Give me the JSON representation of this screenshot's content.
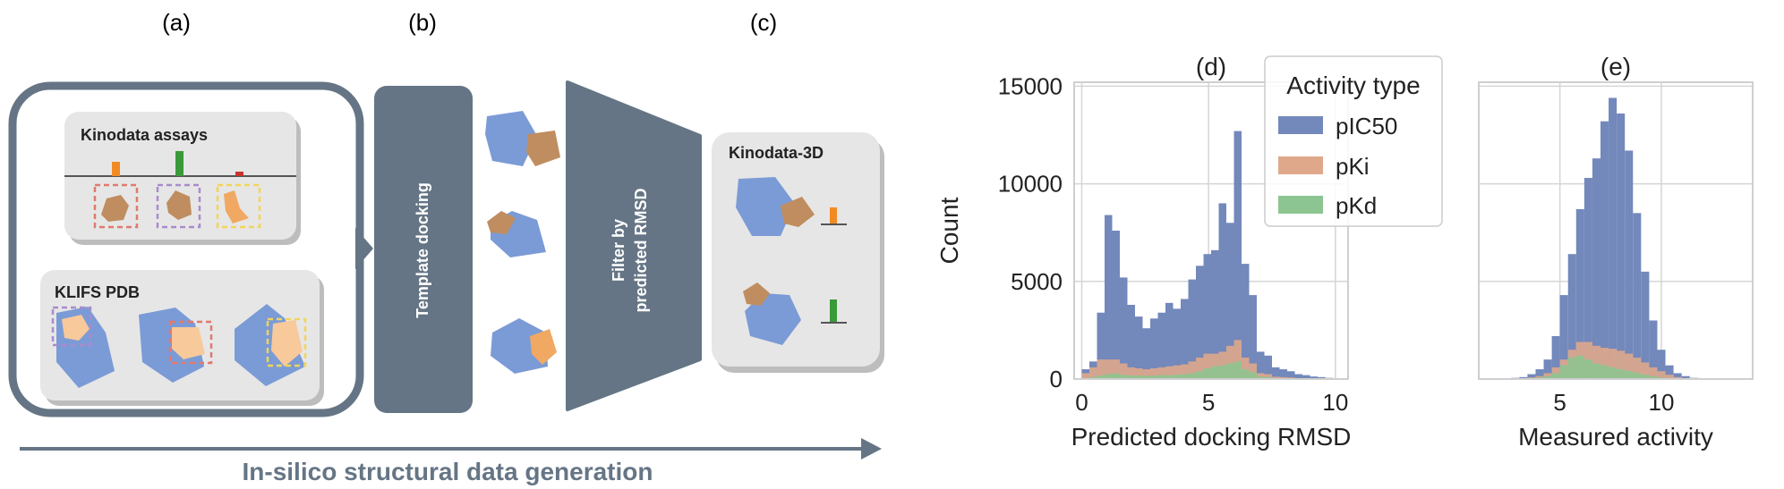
{
  "panel_labels": {
    "a": "(a)",
    "b": "(b)",
    "c": "(c)",
    "d": "(d)",
    "e": "(e)"
  },
  "workflow": {
    "assays_title": "Kinodata assays",
    "pdb_title": "KLIFS PDB",
    "docking_label": "Template docking",
    "filter_label_line1": "Filter by",
    "filter_label_line2": "predicted RMSD",
    "output_title": "Kinodata-3D",
    "arrow_caption": "In-silico structural data generation"
  },
  "colors": {
    "dark_slate": "#657585",
    "light_panel": "#e6e6e6",
    "protein_blue": "#7b9bd6",
    "ligand_brown": "#bf8d5f",
    "ligand_orange": "#f0a862",
    "ligand_peach": "#f8c99a",
    "bar_orange": "#f28a24",
    "bar_green": "#3a9a3a",
    "bar_red": "#c8352b",
    "box_red": "#e07a6e",
    "box_purple": "#a98bcc",
    "box_yellow": "#f2d45a",
    "series_pic50": "#7388bb",
    "series_pki": "#e0a88a",
    "series_pkd": "#8cc591"
  },
  "chart_data": [
    {
      "type": "bar",
      "title": "(d)",
      "xlabel": "Predicted docking RMSD",
      "ylabel": "Count",
      "xlim": [
        -0.3,
        10.5
      ],
      "ylim": [
        0,
        15200
      ],
      "xticks": [
        0,
        5,
        10
      ],
      "yticks": [
        0,
        5000,
        10000,
        15000
      ],
      "grid": true,
      "legend": {
        "title": "Activity type",
        "placement": "top-right",
        "entries": [
          "pIC50",
          "pKi",
          "pKd"
        ]
      },
      "bin_width": 0.3,
      "bin_starts": [
        0,
        0.3,
        0.6,
        0.9,
        1.2,
        1.5,
        1.8,
        2.1,
        2.4,
        2.7,
        3.0,
        3.3,
        3.6,
        3.9,
        4.2,
        4.5,
        4.8,
        5.1,
        5.4,
        5.7,
        6.0,
        6.3,
        6.6,
        6.9,
        7.2,
        7.5,
        7.8,
        8.1,
        8.4,
        8.7,
        9.0,
        9.3,
        9.6,
        9.9
      ],
      "series": [
        {
          "name": "pIC50",
          "values": [
            500,
            900,
            3400,
            8400,
            7600,
            5200,
            3800,
            3200,
            2600,
            3100,
            3400,
            3900,
            3600,
            4100,
            5100,
            5800,
            6400,
            6600,
            9000,
            8000,
            12700,
            5900,
            4300,
            1400,
            1200,
            600,
            500,
            400,
            250,
            200,
            130,
            100,
            60,
            30
          ]
        },
        {
          "name": "pKi",
          "values": [
            300,
            600,
            1000,
            1000,
            1000,
            800,
            600,
            550,
            500,
            550,
            600,
            650,
            700,
            750,
            900,
            1100,
            1300,
            1300,
            1400,
            1700,
            2000,
            1100,
            800,
            300,
            250,
            120,
            100,
            80,
            50,
            40,
            25,
            15,
            10,
            5
          ]
        },
        {
          "name": "pKd",
          "values": [
            50,
            100,
            180,
            250,
            280,
            220,
            180,
            180,
            160,
            170,
            200,
            200,
            220,
            250,
            300,
            400,
            550,
            650,
            700,
            800,
            900,
            500,
            350,
            120,
            100,
            50,
            40,
            30,
            20,
            15,
            10,
            5,
            5,
            2
          ]
        }
      ]
    },
    {
      "type": "bar",
      "title": "(e)",
      "xlabel": "Measured activity",
      "ylabel": "",
      "xlim": [
        1,
        14.5
      ],
      "ylim": [
        0,
        15200
      ],
      "xticks": [
        5,
        10
      ],
      "yticks": [
        0,
        5000,
        10000,
        15000
      ],
      "grid": true,
      "bin_width": 0.4,
      "bin_starts": [
        2.2,
        2.6,
        3.0,
        3.4,
        3.8,
        4.2,
        4.6,
        5.0,
        5.4,
        5.8,
        6.2,
        6.6,
        7.0,
        7.4,
        7.8,
        8.2,
        8.6,
        9.0,
        9.4,
        9.8,
        10.2,
        10.6,
        11.0,
        11.4,
        11.8,
        12.2
      ],
      "series": [
        {
          "name": "pIC50",
          "values": [
            30,
            60,
            100,
            250,
            500,
            1000,
            2200,
            4300,
            6400,
            8700,
            10300,
            11300,
            13200,
            14400,
            13600,
            11700,
            8500,
            5500,
            3000,
            1500,
            700,
            300,
            150,
            60,
            30,
            15
          ]
        },
        {
          "name": "pKi",
          "values": [
            10,
            20,
            40,
            80,
            150,
            300,
            600,
            1000,
            1500,
            1900,
            1900,
            1700,
            1600,
            1550,
            1450,
            1300,
            1100,
            850,
            600,
            400,
            220,
            100,
            50,
            20,
            10,
            5
          ]
        },
        {
          "name": "pKd",
          "values": [
            5,
            10,
            20,
            40,
            80,
            150,
            300,
            700,
            1100,
            1200,
            1000,
            800,
            700,
            600,
            500,
            420,
            320,
            220,
            140,
            80,
            40,
            20,
            10,
            5,
            2,
            1
          ]
        }
      ]
    }
  ]
}
